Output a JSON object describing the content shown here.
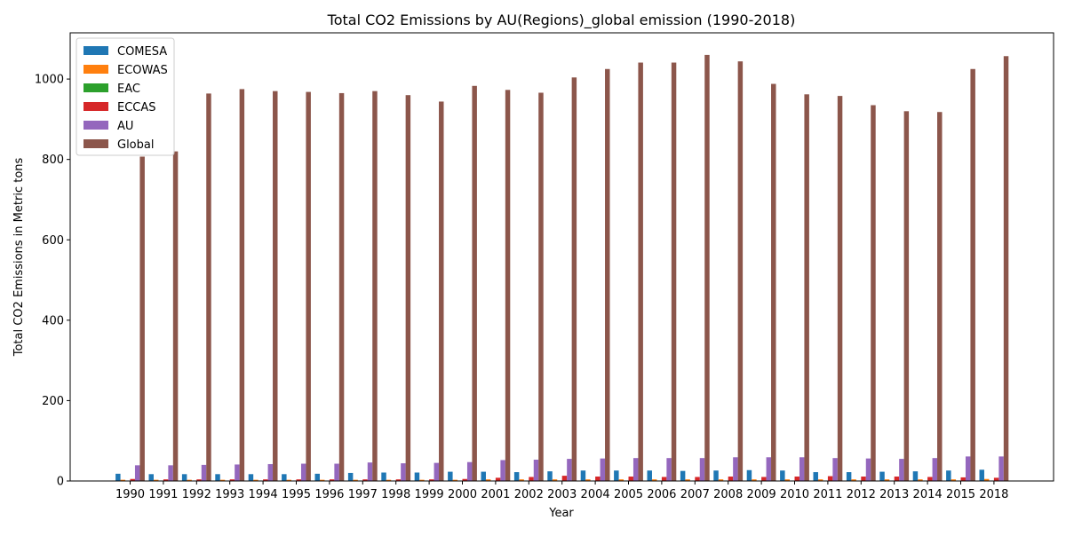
{
  "chart_data": {
    "type": "bar",
    "title": "Total CO2 Emissions by AU(Regions)_global emission (1990-2018)",
    "xlabel": "Year",
    "ylabel": "Total CO2 Emissions in Metric tons",
    "ylim": [
      0,
      1115
    ],
    "yticks": [
      0,
      200,
      400,
      600,
      800,
      1000
    ],
    "grid": false,
    "legend_position": "top-left",
    "categories": [
      "1990",
      "1991",
      "1992",
      "1993",
      "1994",
      "1995",
      "1996",
      "1997",
      "1998",
      "1999",
      "2000",
      "2001",
      "2002",
      "2003",
      "2004",
      "2005",
      "2006",
      "2007",
      "2008",
      "2009",
      "2010",
      "2011",
      "2012",
      "2013",
      "2014",
      "2015",
      "2018"
    ],
    "series": [
      {
        "name": "COMESA",
        "color": "#1f77b4",
        "values": [
          18,
          17,
          17,
          17,
          17,
          17,
          18,
          20,
          21,
          21,
          23,
          23,
          22,
          24,
          26,
          26,
          26,
          25,
          26,
          27,
          26,
          22,
          22,
          23,
          24,
          26,
          28
        ]
      },
      {
        "name": "ECOWAS",
        "color": "#ff7f0e",
        "values": [
          3,
          3,
          3,
          3,
          3,
          3,
          3,
          3,
          3,
          3,
          3,
          4,
          4,
          4,
          4,
          4,
          4,
          4,
          4,
          4,
          4,
          4,
          4,
          4,
          4,
          4,
          5
        ]
      },
      {
        "name": "EAC",
        "color": "#2ca02c",
        "values": [
          1,
          1,
          1,
          1,
          1,
          1,
          1,
          1,
          1,
          1,
          1,
          1,
          1,
          1,
          1,
          1,
          1,
          1,
          1,
          1,
          1,
          1,
          1,
          1,
          1,
          1,
          1
        ]
      },
      {
        "name": "ECCAS",
        "color": "#d62728",
        "values": [
          5,
          4,
          4,
          4,
          4,
          4,
          4,
          4,
          4,
          4,
          5,
          8,
          10,
          13,
          11,
          11,
          10,
          10,
          11,
          10,
          11,
          12,
          11,
          11,
          10,
          9,
          8
        ]
      },
      {
        "name": "AU",
        "color": "#9467bd",
        "values": [
          39,
          39,
          40,
          41,
          42,
          43,
          43,
          46,
          44,
          45,
          47,
          52,
          53,
          55,
          56,
          57,
          57,
          57,
          59,
          59,
          59,
          57,
          56,
          55,
          57,
          61,
          61
        ]
      },
      {
        "name": "Global",
        "color": "#8c564b",
        "values": [
          807,
          820,
          964,
          975,
          970,
          968,
          965,
          970,
          960,
          944,
          983,
          973,
          966,
          1004,
          1025,
          1041,
          1041,
          1060,
          1044,
          988,
          962,
          958,
          935,
          920,
          918,
          1025,
          1057
        ]
      }
    ]
  }
}
